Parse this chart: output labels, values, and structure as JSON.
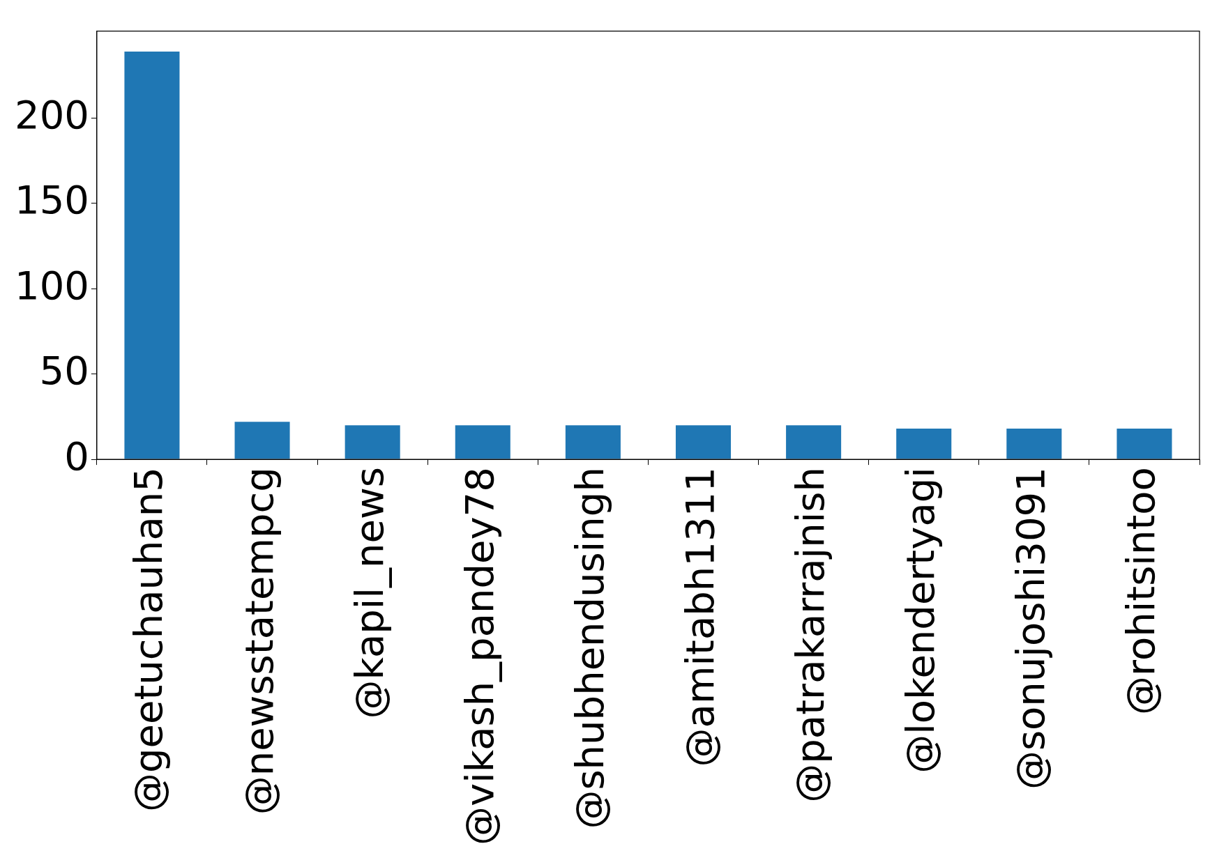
{
  "chart_data": {
    "type": "bar",
    "categories": [
      "@geetuchauhan5",
      "@newsstatempcg",
      "@kapil_news",
      "@vikash_pandey78",
      "@shubhendusingh",
      "@amitabh1311",
      "@patrakarrajnish",
      "@lokendertyagi",
      "@sonujoshi3091",
      "@rohitsintoo"
    ],
    "values": [
      239,
      22,
      20,
      20,
      20,
      20,
      20,
      18,
      18,
      18
    ],
    "color": "#1f77b4",
    "ylim": [
      0,
      251
    ],
    "yticks": [
      0,
      50,
      100,
      150,
      200
    ],
    "grid": false,
    "legend": false
  }
}
